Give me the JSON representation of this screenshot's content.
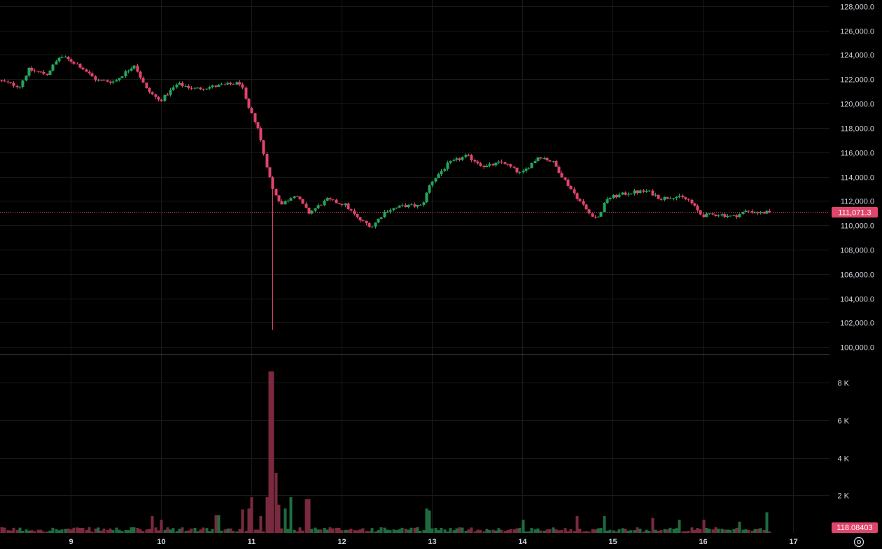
{
  "colors": {
    "background": "#000000",
    "grid": "#1a1a1a",
    "up": "#26a65b",
    "down": "#e0456b",
    "up_volume": "#1f6b3f",
    "down_volume": "#7a2a3e",
    "last_price_badge": "#e0456b",
    "divider": "#3a3a3a"
  },
  "icons": {
    "settings": "settings-icon"
  },
  "chart_data": [
    {
      "type": "candlestick",
      "title": "",
      "xlabel": "",
      "ylabel": "",
      "x_ticks": [
        "9",
        "10",
        "11",
        "12",
        "13",
        "14",
        "15",
        "16",
        "17"
      ],
      "y_ticks": [
        "128,000.0",
        "126,000.0",
        "124,000.0",
        "122,000.0",
        "120,000.0",
        "118,000.0",
        "116,000.0",
        "114,000.0",
        "112,000.0",
        "110,000.0",
        "108,000.0",
        "106,000.0",
        "104,000.0",
        "102,000.0",
        "100,000.0"
      ],
      "ylim": [
        99500,
        128500
      ],
      "x_range_days": [
        8.22,
        17.4
      ],
      "candles_per_day": 30,
      "last_price": 111071.3,
      "last_price_label": "111,071.3",
      "anchors": [
        [
          8.22,
          121900
        ],
        [
          8.45,
          121400
        ],
        [
          8.55,
          122800
        ],
        [
          8.75,
          122400
        ],
        [
          8.9,
          123900
        ],
        [
          9.1,
          123200
        ],
        [
          9.3,
          121900
        ],
        [
          9.5,
          121800
        ],
        [
          9.72,
          123200
        ],
        [
          9.85,
          121200
        ],
        [
          10.0,
          120200
        ],
        [
          10.2,
          121600
        ],
        [
          10.4,
          121200
        ],
        [
          10.7,
          121500
        ],
        [
          10.9,
          121700
        ],
        [
          10.97,
          119800
        ],
        [
          11.08,
          118200
        ],
        [
          11.15,
          116000
        ],
        [
          11.25,
          113000
        ],
        [
          11.35,
          111700
        ],
        [
          11.5,
          112600
        ],
        [
          11.65,
          111000
        ],
        [
          11.85,
          112100
        ],
        [
          12.05,
          111700
        ],
        [
          12.2,
          110500
        ],
        [
          12.35,
          109900
        ],
        [
          12.5,
          111200
        ],
        [
          12.7,
          111600
        ],
        [
          12.9,
          111600
        ],
        [
          13.0,
          113500
        ],
        [
          13.2,
          115100
        ],
        [
          13.4,
          115700
        ],
        [
          13.6,
          114800
        ],
        [
          13.8,
          115200
        ],
        [
          14.0,
          114200
        ],
        [
          14.2,
          115700
        ],
        [
          14.35,
          115200
        ],
        [
          14.55,
          113000
        ],
        [
          14.75,
          111000
        ],
        [
          14.85,
          110600
        ],
        [
          14.95,
          112200
        ],
        [
          15.2,
          112700
        ],
        [
          15.4,
          112800
        ],
        [
          15.55,
          112200
        ],
        [
          15.7,
          112400
        ],
        [
          15.85,
          112100
        ],
        [
          16.0,
          110800
        ],
        [
          16.2,
          110900
        ],
        [
          16.35,
          110700
        ],
        [
          16.5,
          111200
        ],
        [
          16.65,
          111000
        ],
        [
          16.73,
          111071
        ]
      ],
      "spike_low": {
        "day": 11.22,
        "low": 101400
      }
    },
    {
      "type": "bar",
      "title": "",
      "xlabel": "",
      "ylabel": "",
      "y_ticks": [
        "8 K",
        "6 K",
        "4 K",
        "2 K"
      ],
      "ylim": [
        0,
        9500
      ],
      "baseline_volume": 180,
      "last_volume_label": "118.08403",
      "volume_spikes": [
        [
          9.9,
          900
        ],
        [
          10.0,
          700
        ],
        [
          10.62,
          950
        ],
        [
          10.9,
          1250
        ],
        [
          10.97,
          1300
        ],
        [
          11.0,
          1900
        ],
        [
          11.1,
          900
        ],
        [
          11.17,
          1900
        ],
        [
          11.22,
          8600
        ],
        [
          11.26,
          3200
        ],
        [
          11.3,
          1500
        ],
        [
          11.38,
          1300
        ],
        [
          11.45,
          1900
        ],
        [
          11.62,
          1800
        ],
        [
          12.95,
          1300
        ],
        [
          12.97,
          1200
        ],
        [
          14.0,
          700
        ],
        [
          14.6,
          900
        ],
        [
          14.9,
          900
        ],
        [
          15.45,
          800
        ],
        [
          15.75,
          700
        ],
        [
          16.0,
          700
        ],
        [
          16.4,
          600
        ],
        [
          16.7,
          1100
        ]
      ]
    }
  ]
}
